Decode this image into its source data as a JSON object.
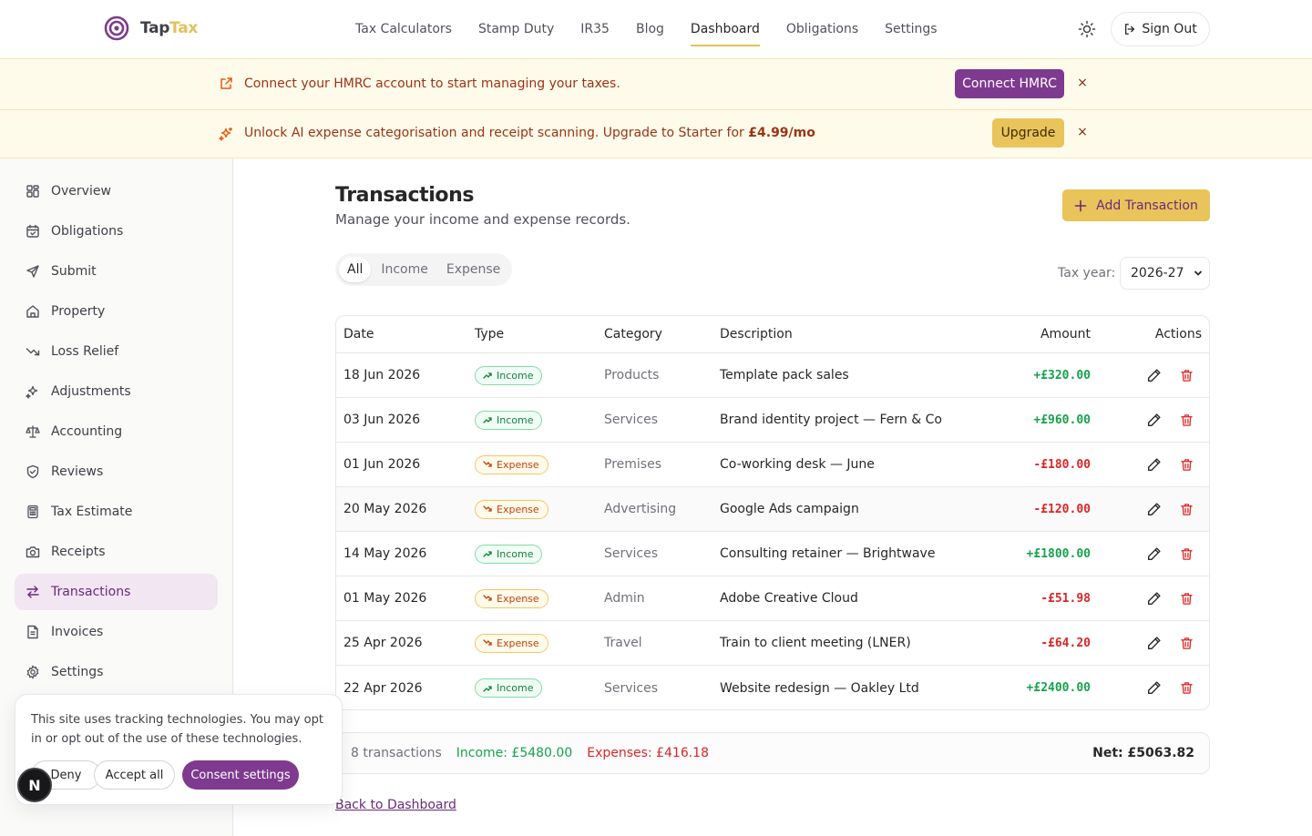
{
  "brand": {
    "name_part1": "Tap",
    "name_part2": "Tax"
  },
  "nav": {
    "links": [
      "Tax Calculators",
      "Stamp Duty",
      "IR35",
      "Blog",
      "Dashboard",
      "Obligations",
      "Settings"
    ],
    "active": "Dashboard",
    "sign_out": "Sign Out"
  },
  "banners": {
    "hmrc": {
      "text": "Connect your HMRC account to start managing your taxes.",
      "button": "Connect HMRC",
      "close": "×"
    },
    "upgrade": {
      "text": "Unlock AI expense categorisation and receipt scanning. Upgrade to Starter for ",
      "price": "£4.99/mo",
      "button": "Upgrade",
      "close": "×"
    }
  },
  "sidebar": {
    "items": [
      {
        "label": "Overview",
        "icon": "grid-icon"
      },
      {
        "label": "Obligations",
        "icon": "calendar-icon"
      },
      {
        "label": "Submit",
        "icon": "send-icon"
      },
      {
        "label": "Property",
        "icon": "home-icon"
      },
      {
        "label": "Loss Relief",
        "icon": "trend-down-icon"
      },
      {
        "label": "Adjustments",
        "icon": "sparkles-icon"
      },
      {
        "label": "Accounting",
        "icon": "scale-icon"
      },
      {
        "label": "Reviews",
        "icon": "shield-check-icon"
      },
      {
        "label": "Tax Estimate",
        "icon": "calculator-icon"
      },
      {
        "label": "Receipts",
        "icon": "camera-icon"
      },
      {
        "label": "Transactions",
        "icon": "arrows-swap-icon"
      },
      {
        "label": "Invoices",
        "icon": "file-text-icon"
      },
      {
        "label": "Settings",
        "icon": "gear-icon"
      }
    ],
    "active": "Transactions"
  },
  "page": {
    "title": "Transactions",
    "subtitle": "Manage your income and expense records.",
    "add_button": "Add Transaction",
    "filters": [
      "All",
      "Income",
      "Expense"
    ],
    "active_filter": "All",
    "tax_year_label": "Tax year:",
    "tax_year_value": "2026-27"
  },
  "table": {
    "headers": {
      "date": "Date",
      "type": "Type",
      "category": "Category",
      "description": "Description",
      "amount": "Amount",
      "actions": "Actions"
    },
    "rows": [
      {
        "date": "18 Jun 2026",
        "type": "Income",
        "category": "Products",
        "description": "Template pack sales",
        "amount": "+£320.00"
      },
      {
        "date": "03 Jun 2026",
        "type": "Income",
        "category": "Services",
        "description": "Brand identity project — Fern & Co",
        "amount": "+£960.00"
      },
      {
        "date": "01 Jun 2026",
        "type": "Expense",
        "category": "Premises",
        "description": "Co-working desk — June",
        "amount": "-£180.00"
      },
      {
        "date": "20 May 2026",
        "type": "Expense",
        "category": "Advertising",
        "description": "Google Ads campaign",
        "amount": "-£120.00"
      },
      {
        "date": "14 May 2026",
        "type": "Income",
        "category": "Services",
        "description": "Consulting retainer — Brightwave",
        "amount": "+£1800.00"
      },
      {
        "date": "01 May 2026",
        "type": "Expense",
        "category": "Admin",
        "description": "Adobe Creative Cloud",
        "amount": "-£51.98"
      },
      {
        "date": "25 Apr 2026",
        "type": "Expense",
        "category": "Travel",
        "description": "Train to client meeting (LNER)",
        "amount": "-£64.20"
      },
      {
        "date": "22 Apr 2026",
        "type": "Income",
        "category": "Services",
        "description": "Website redesign — Oakley Ltd",
        "amount": "+£2400.00"
      }
    ]
  },
  "summary": {
    "count": "8 transactions",
    "income": "Income: £5480.00",
    "expenses": "Expenses: £416.18",
    "net": "Net: £5063.82"
  },
  "back_link": "Back to Dashboard",
  "consent": {
    "text": "This site uses tracking technologies. You may opt in or opt out of the use of these technologies.",
    "deny": "Deny",
    "accept": "Accept all",
    "settings": "Consent settings"
  },
  "floating_badge": "N",
  "colors": {
    "brand_purple": "#7e3a8e",
    "brand_gold": "#e8c45a",
    "income_green": "#16a34a",
    "expense_red": "#dc2626"
  }
}
